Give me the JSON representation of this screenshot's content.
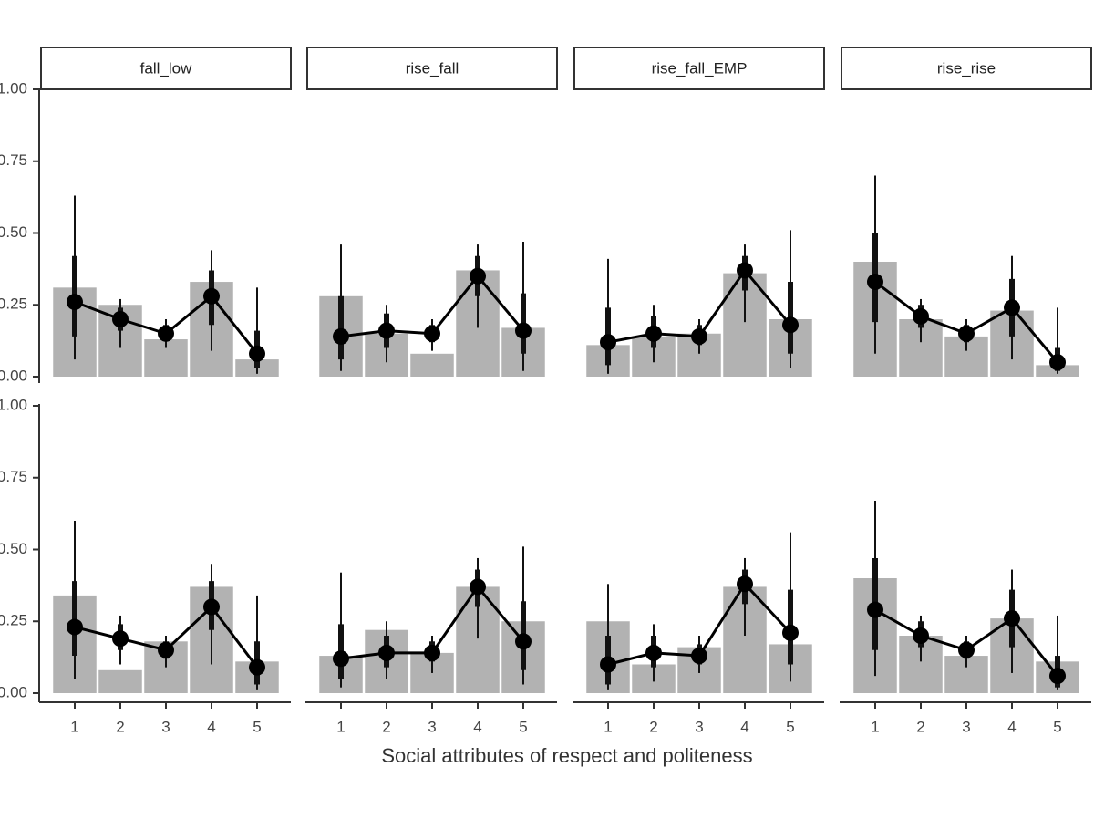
{
  "chart_data": [
    {
      "type": "line",
      "title": "fall_low",
      "x": [
        1,
        2,
        3,
        4,
        5
      ],
      "xlim": [
        0.5,
        5.5
      ],
      "ylim": [
        0,
        1
      ],
      "yticks": [
        {
          "value": 1,
          "label": "1.00"
        },
        {
          "value": 0.75,
          "label": "0.75"
        },
        {
          "value": 0.5,
          "label": "0.50"
        },
        {
          "value": 0.25,
          "label": "0.25"
        },
        {
          "value": 0,
          "label": "0.00"
        }
      ],
      "values": [
        0.26,
        0.2,
        0.15,
        0.28,
        0.08
      ],
      "bars": [
        0.31,
        0.25,
        0.13,
        0.33,
        0.06
      ],
      "outer_low": [
        0.06,
        0.1,
        0.1,
        0.09,
        0.01
      ],
      "outer_high": [
        0.63,
        0.27,
        0.2,
        0.44,
        0.31
      ],
      "inner_low": [
        0.14,
        0.16,
        0.13,
        0.18,
        0.03
      ],
      "inner_high": [
        0.42,
        0.24,
        0.18,
        0.37,
        0.16
      ]
    },
    {
      "type": "line",
      "title": "rise_fall",
      "x": [
        1,
        2,
        3,
        4,
        5
      ],
      "xlim": [
        0.5,
        5.5
      ],
      "ylim": [
        0,
        1
      ],
      "values": [
        0.14,
        0.16,
        0.15,
        0.35,
        0.16
      ],
      "bars": [
        0.28,
        0.15,
        0.08,
        0.37,
        0.17
      ],
      "outer_low": [
        0.02,
        0.05,
        0.09,
        0.17,
        0.02
      ],
      "outer_high": [
        0.46,
        0.25,
        0.2,
        0.46,
        0.47
      ],
      "inner_low": [
        0.06,
        0.1,
        0.12,
        0.28,
        0.08
      ],
      "inner_high": [
        0.28,
        0.22,
        0.18,
        0.42,
        0.29
      ]
    },
    {
      "type": "line",
      "title": "rise_fall_EMP",
      "x": [
        1,
        2,
        3,
        4,
        5
      ],
      "xlim": [
        0.5,
        5.5
      ],
      "ylim": [
        0,
        1
      ],
      "values": [
        0.12,
        0.15,
        0.14,
        0.37,
        0.18
      ],
      "bars": [
        0.11,
        0.14,
        0.15,
        0.36,
        0.2
      ],
      "outer_low": [
        0.01,
        0.05,
        0.08,
        0.19,
        0.03
      ],
      "outer_high": [
        0.41,
        0.25,
        0.2,
        0.46,
        0.51
      ],
      "inner_low": [
        0.04,
        0.1,
        0.11,
        0.3,
        0.08
      ],
      "inner_high": [
        0.24,
        0.21,
        0.18,
        0.42,
        0.33
      ]
    },
    {
      "type": "line",
      "title": "rise_rise",
      "x": [
        1,
        2,
        3,
        4,
        5
      ],
      "xlim": [
        0.5,
        5.5
      ],
      "ylim": [
        0,
        1
      ],
      "values": [
        0.33,
        0.21,
        0.15,
        0.24,
        0.05
      ],
      "bars": [
        0.4,
        0.2,
        0.14,
        0.23,
        0.04
      ],
      "outer_low": [
        0.08,
        0.12,
        0.09,
        0.06,
        0.01
      ],
      "outer_high": [
        0.7,
        0.27,
        0.2,
        0.42,
        0.24
      ],
      "inner_low": [
        0.19,
        0.17,
        0.12,
        0.14,
        0.02
      ],
      "inner_high": [
        0.5,
        0.25,
        0.18,
        0.34,
        0.1
      ]
    },
    {
      "type": "line",
      "x": [
        1,
        2,
        3,
        4,
        5
      ],
      "xlim": [
        0.5,
        5.5
      ],
      "ylim": [
        0,
        1
      ],
      "xticks": [
        1,
        2,
        3,
        4,
        5
      ],
      "xlabel": "Social attributes of respect and politeness",
      "yticks": [
        {
          "value": 1,
          "label": "1.00"
        },
        {
          "value": 0.75,
          "label": "0.75"
        },
        {
          "value": 0.5,
          "label": "0.50"
        },
        {
          "value": 0.25,
          "label": "0.25"
        },
        {
          "value": 0,
          "label": "0.00"
        }
      ],
      "values": [
        0.23,
        0.19,
        0.15,
        0.3,
        0.09
      ],
      "bars": [
        0.34,
        0.08,
        0.18,
        0.37,
        0.11
      ],
      "outer_low": [
        0.05,
        0.1,
        0.09,
        0.1,
        0.01
      ],
      "outer_high": [
        0.6,
        0.27,
        0.2,
        0.45,
        0.34
      ],
      "inner_low": [
        0.13,
        0.15,
        0.12,
        0.22,
        0.03
      ],
      "inner_high": [
        0.39,
        0.24,
        0.18,
        0.39,
        0.18
      ]
    },
    {
      "type": "line",
      "x": [
        1,
        2,
        3,
        4,
        5
      ],
      "xlim": [
        0.5,
        5.5
      ],
      "ylim": [
        0,
        1
      ],
      "xticks": [
        1,
        2,
        3,
        4,
        5
      ],
      "values": [
        0.12,
        0.14,
        0.14,
        0.37,
        0.18
      ],
      "bars": [
        0.13,
        0.22,
        0.14,
        0.37,
        0.25
      ],
      "outer_low": [
        0.02,
        0.05,
        0.07,
        0.19,
        0.03
      ],
      "outer_high": [
        0.42,
        0.25,
        0.2,
        0.47,
        0.51
      ],
      "inner_low": [
        0.05,
        0.09,
        0.11,
        0.3,
        0.08
      ],
      "inner_high": [
        0.24,
        0.2,
        0.18,
        0.43,
        0.32
      ]
    },
    {
      "type": "line",
      "x": [
        1,
        2,
        3,
        4,
        5
      ],
      "xlim": [
        0.5,
        5.5
      ],
      "ylim": [
        0,
        1
      ],
      "xticks": [
        1,
        2,
        3,
        4,
        5
      ],
      "values": [
        0.1,
        0.14,
        0.13,
        0.38,
        0.21
      ],
      "bars": [
        0.25,
        0.1,
        0.16,
        0.37,
        0.17
      ],
      "outer_low": [
        0.01,
        0.04,
        0.07,
        0.2,
        0.04
      ],
      "outer_high": [
        0.38,
        0.24,
        0.2,
        0.47,
        0.56
      ],
      "inner_low": [
        0.03,
        0.09,
        0.1,
        0.31,
        0.1
      ],
      "inner_high": [
        0.2,
        0.2,
        0.17,
        0.43,
        0.36
      ]
    },
    {
      "type": "line",
      "x": [
        1,
        2,
        3,
        4,
        5
      ],
      "xlim": [
        0.5,
        5.5
      ],
      "ylim": [
        0,
        1
      ],
      "xticks": [
        1,
        2,
        3,
        4,
        5
      ],
      "values": [
        0.29,
        0.2,
        0.15,
        0.26,
        0.06
      ],
      "bars": [
        0.4,
        0.2,
        0.13,
        0.26,
        0.11
      ],
      "outer_low": [
        0.06,
        0.11,
        0.09,
        0.07,
        0.01
      ],
      "outer_high": [
        0.67,
        0.27,
        0.2,
        0.43,
        0.27
      ],
      "inner_low": [
        0.15,
        0.16,
        0.12,
        0.16,
        0.02
      ],
      "inner_high": [
        0.47,
        0.25,
        0.18,
        0.36,
        0.13
      ]
    }
  ]
}
